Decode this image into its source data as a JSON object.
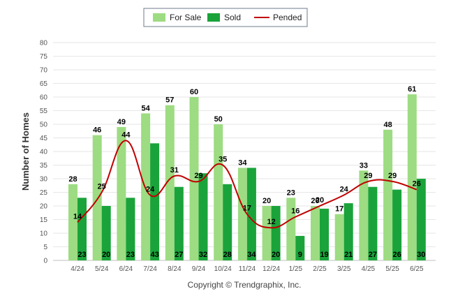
{
  "chart_data": {
    "type": "bar",
    "ylabel": "Number of Homes",
    "ylim": [
      0,
      80
    ],
    "yticks": [
      0,
      5,
      10,
      15,
      20,
      25,
      30,
      35,
      40,
      45,
      50,
      55,
      60,
      65,
      70,
      75,
      80
    ],
    "categories": [
      "4/24",
      "5/24",
      "6/24",
      "7/24",
      "8/24",
      "9/24",
      "10/24",
      "11/24",
      "12/24",
      "1/25",
      "2/25",
      "3/25",
      "4/25",
      "5/25",
      "6/25"
    ],
    "series": [
      {
        "name": "For Sale",
        "kind": "bar",
        "color": "#9ddc82",
        "values": [
          28,
          46,
          49,
          54,
          57,
          60,
          50,
          34,
          20,
          23,
          20,
          17,
          33,
          48,
          61
        ]
      },
      {
        "name": "Sold",
        "kind": "bar",
        "color": "#1aa33a",
        "values": [
          23,
          20,
          23,
          43,
          27,
          32,
          28,
          34,
          20,
          9,
          19,
          21,
          27,
          26,
          30
        ]
      },
      {
        "name": "Pended",
        "kind": "line",
        "color": "#c00000",
        "values": [
          14,
          25,
          44,
          24,
          31,
          29,
          35,
          17,
          12,
          16,
          20,
          24,
          29,
          29,
          26
        ]
      }
    ],
    "legend_position": "top-center",
    "grid": true
  },
  "footer": {
    "copyright": "Copyright © Trendgraphix, Inc."
  }
}
